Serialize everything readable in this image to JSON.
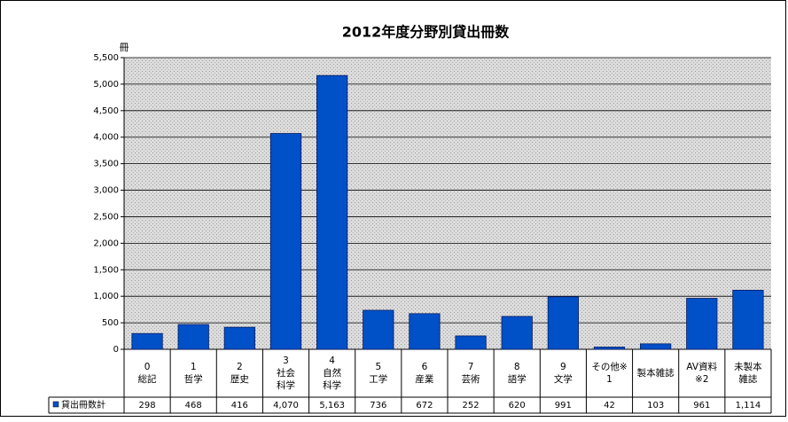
{
  "chart_data": {
    "type": "bar",
    "title": "2012年度分野別貸出冊数",
    "y_unit": "冊",
    "categories": [
      [
        "0",
        "総記"
      ],
      [
        "1",
        "哲学"
      ],
      [
        "2",
        "歴史"
      ],
      [
        "3",
        "社会",
        "科学"
      ],
      [
        "4",
        "自然",
        "科学"
      ],
      [
        "5",
        "工学"
      ],
      [
        "6",
        "産業"
      ],
      [
        "7",
        "芸術"
      ],
      [
        "8",
        "語学"
      ],
      [
        "9",
        "文学"
      ],
      [
        "その他※",
        "1"
      ],
      [
        "製本雑誌"
      ],
      [
        "AV資料",
        "※2"
      ],
      [
        "未製本",
        "雑誌"
      ]
    ],
    "series": [
      {
        "name": "貸出冊数計",
        "color": "#0050c8",
        "values": [
          298,
          468,
          416,
          4070,
          5163,
          736,
          672,
          252,
          620,
          991,
          42,
          103,
          961,
          1114
        ],
        "value_labels": [
          "298",
          "468",
          "416",
          "4,070",
          "5,163",
          "736",
          "672",
          "252",
          "620",
          "991",
          "42",
          "103",
          "961",
          "1,114"
        ]
      }
    ],
    "ylim": [
      0,
      5500
    ],
    "yticks": [
      0,
      500,
      {
        "value": 1000,
        "label": "1,000"
      },
      {
        "value": 1500,
        "label": "1,500"
      },
      {
        "value": 2000,
        "label": "2,000"
      },
      {
        "value": 2500,
        "label": "2,500"
      },
      {
        "value": 3000,
        "label": "3,000"
      },
      {
        "value": 3500,
        "label": "3,500"
      },
      {
        "value": 4000,
        "label": "4,000"
      },
      {
        "value": 4500,
        "label": "4,500"
      },
      {
        "value": 5000,
        "label": "5,000"
      },
      {
        "value": 5500,
        "label": "5,500"
      }
    ],
    "grid": true
  }
}
